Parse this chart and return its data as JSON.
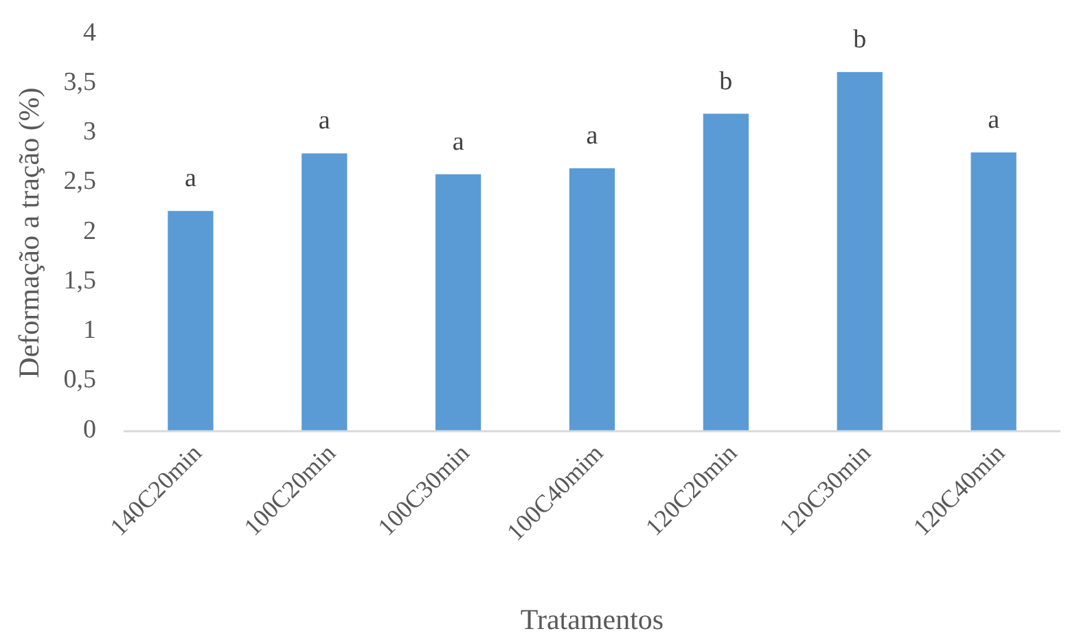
{
  "chart_data": {
    "type": "bar",
    "xlabel": "Tratamentos",
    "ylabel": "Deformação a tração (%)",
    "categories": [
      "140C20min",
      "100C20min",
      "100C30min",
      "100C40mim",
      "120C20min",
      "120C30min",
      "120C40min"
    ],
    "values": [
      2.22,
      2.8,
      2.59,
      2.65,
      3.2,
      3.62,
      2.81
    ],
    "color": "#5b9bd5",
    "ylim": [
      0,
      4
    ],
    "yticks": [
      {
        "value": 0,
        "label": "0"
      },
      {
        "value": 0.5,
        "label": "0,5"
      },
      {
        "value": 1,
        "label": "1"
      },
      {
        "value": 1.5,
        "label": "1,5"
      },
      {
        "value": 2,
        "label": "2"
      },
      {
        "value": 2.5,
        "label": "2,5"
      },
      {
        "value": 3,
        "label": "3"
      },
      {
        "value": 3.5,
        "label": "3,5"
      },
      {
        "value": 4,
        "label": "4"
      }
    ],
    "grid": false,
    "annotations": [
      {
        "text": "a",
        "x": "140C20min",
        "y": 2.22
      },
      {
        "text": "a",
        "x": "100C20min",
        "y": 2.8
      },
      {
        "text": "a",
        "x": "100C30min",
        "y": 2.59
      },
      {
        "text": "a",
        "x": "100C40mim",
        "y": 2.65
      },
      {
        "text": "b",
        "x": "120C20min",
        "y": 3.2
      },
      {
        "text": "b",
        "x": "120C30min",
        "y": 3.62
      },
      {
        "text": "a",
        "x": "120C40min",
        "y": 2.81
      }
    ]
  }
}
